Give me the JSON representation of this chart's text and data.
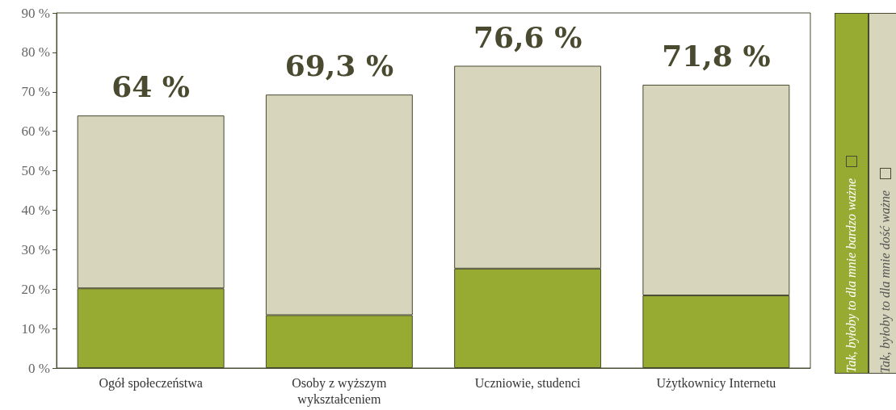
{
  "chart_data": {
    "type": "bar",
    "stacked": true,
    "categories": [
      "Ogół społeczeństwa",
      "Osoby z wyższym\nwykształceniem",
      "Uczniowie, studenci",
      "Użytkownicy Internetu"
    ],
    "series": [
      {
        "name": "Tak, byłoby to dla mnie bardzo ważne",
        "color": "#97ab33",
        "values": [
          20.2,
          13.4,
          25.2,
          18.4
        ]
      },
      {
        "name": "Tak, byłoby to dla mnie dość ważne",
        "color": "#d7d5bb",
        "values": [
          43.8,
          55.9,
          51.4,
          53.4
        ]
      }
    ],
    "totals": [
      "64 %",
      "69,3 %",
      "76,6 %",
      "71,8 %"
    ],
    "ylim": [
      0,
      90
    ],
    "yticks": [
      {
        "value": 0,
        "label": "0 %"
      },
      {
        "value": 10,
        "label": "10 %"
      },
      {
        "value": 20,
        "label": "20 %"
      },
      {
        "value": 30,
        "label": "30 %"
      },
      {
        "value": 40,
        "label": "40 %"
      },
      {
        "value": 50,
        "label": "50 %"
      },
      {
        "value": 60,
        "label": "60 %"
      },
      {
        "value": 70,
        "label": "70 %"
      },
      {
        "value": 80,
        "label": "80 %"
      },
      {
        "value": 90,
        "label": "90 %"
      }
    ],
    "grid": false,
    "legend": "right"
  }
}
